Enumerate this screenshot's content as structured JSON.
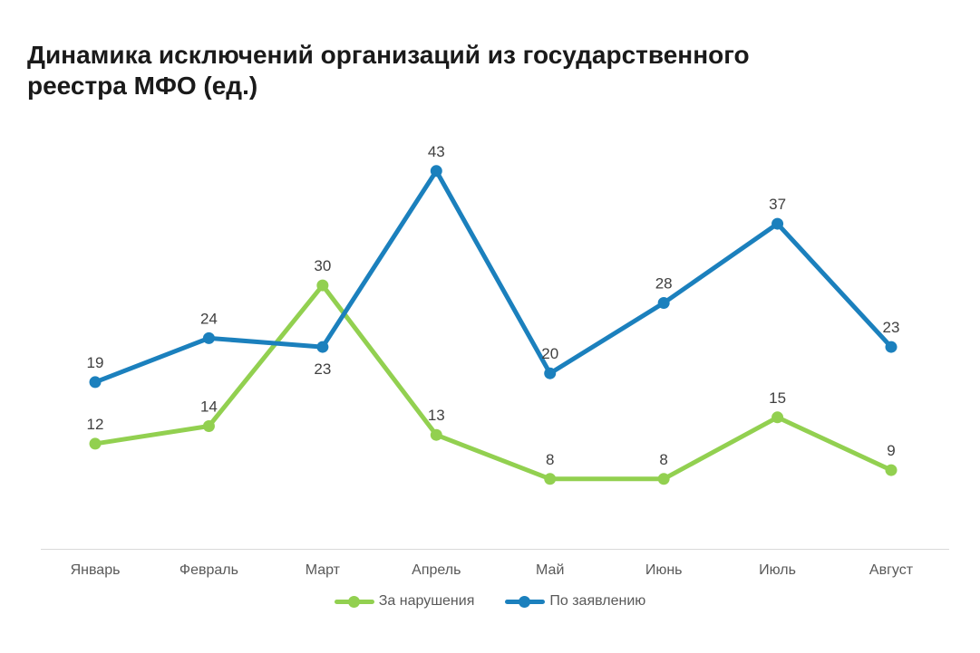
{
  "title": "Динамика исключений организаций из государственного реестра МФО (ед.)",
  "chart_data": {
    "type": "line",
    "title": "Динамика исключений организаций из государственного реестра МФО (ед.)",
    "categories": [
      "Январь",
      "Февраль",
      "Март",
      "Апрель",
      "Май",
      "Июнь",
      "Июль",
      "Август"
    ],
    "series": [
      {
        "name": "За нарушения",
        "color": "#92d050",
        "values": [
          12,
          14,
          30,
          13,
          8,
          8,
          15,
          9
        ],
        "labels_below_indices": []
      },
      {
        "name": "По заявлению",
        "color": "#1b80bd",
        "values": [
          19,
          24,
          23,
          43,
          20,
          28,
          37,
          23
        ],
        "labels_below_indices": [
          2
        ]
      }
    ],
    "xlabel": "",
    "ylabel": "",
    "ylim": [
      0,
      46
    ],
    "grid": false,
    "value_labels": true,
    "legend_position": "bottom"
  },
  "legend": {
    "items": [
      {
        "label": "За нарушения",
        "color": "#92d050"
      },
      {
        "label": "По заявлению",
        "color": "#1b80bd"
      }
    ]
  },
  "colors": {
    "title": "#1a1a1a",
    "axis_line": "#d9d9d9",
    "value_label": "#404040",
    "category_label": "#595959",
    "legend_text": "#595959"
  }
}
